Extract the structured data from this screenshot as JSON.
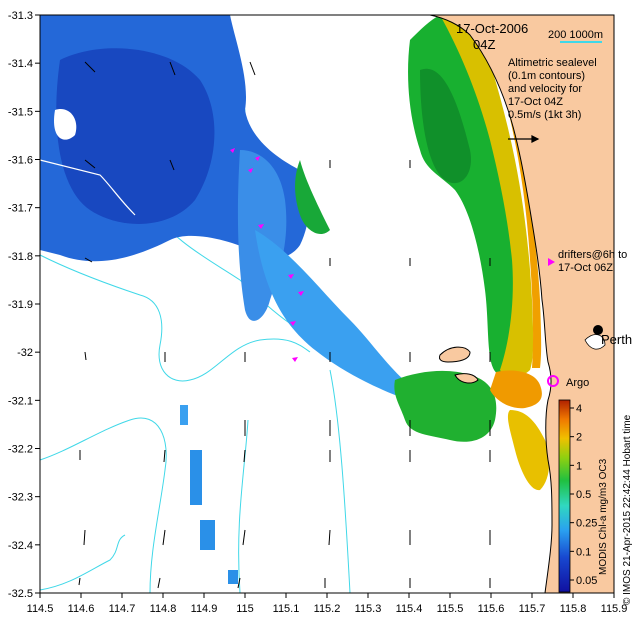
{
  "map": {
    "date_label": "17-Oct-2006",
    "time_label": "04Z",
    "scale_label": "200  1000m",
    "legend_lines": [
      "Altimetric sealevel",
      "(0.1m contours)",
      "and velocity for",
      "17-Oct 04Z",
      "0.5m/s (1kt 3h)"
    ],
    "drifters_lines": [
      "drifters@6h to",
      "17-Oct 06Z"
    ],
    "place_perth": "Perth",
    "place_argo": "Argo",
    "credit": "© IMOS 21-Apr-2015 22:42:44 Hobart time",
    "colorbar_title": "MODIS Chl-a mg/m3 OC3",
    "colorbar_ticks": [
      "4",
      "2",
      "1",
      "0.5",
      "0.25",
      "0.1",
      "0.05"
    ],
    "x_ticks": [
      "114.5",
      "114.6",
      "114.7",
      "114.8",
      "114.9",
      "115",
      "115.1",
      "115.2",
      "115.3",
      "115.4",
      "115.5",
      "115.6",
      "115.7",
      "115.8",
      "115.9"
    ],
    "y_ticks": [
      "-31.3",
      "-31.4",
      "-31.5",
      "-31.6",
      "-31.7",
      "-31.8",
      "-31.9",
      "-32",
      "-32.1",
      "-32.2",
      "-32.3",
      "-32.4",
      "-32.5"
    ],
    "colors": {
      "land": "#f9c9a0",
      "contour": "#40d8e8",
      "chl_low": "#1848d0",
      "chl_mid": "#18b830",
      "chl_high": "#f0a000",
      "drifter": "#ff00ff"
    }
  }
}
